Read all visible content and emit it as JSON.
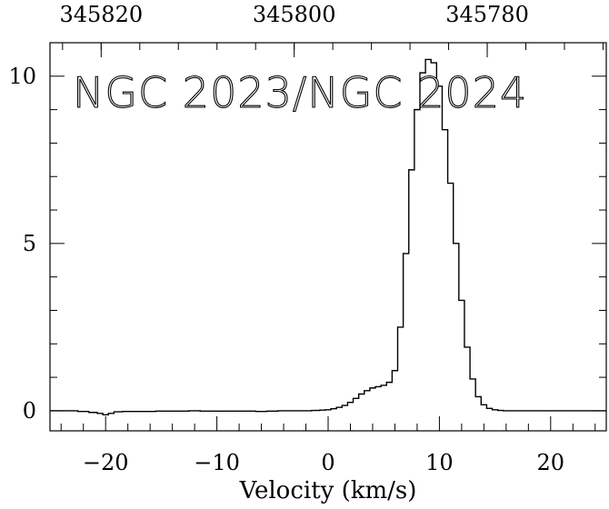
{
  "chart_data": {
    "type": "line",
    "style": "step",
    "title": "NGC 2023/NGC 2024",
    "xlabel": "Velocity (km/s)",
    "ylabel": "",
    "xlim": [
      -25,
      25
    ],
    "ylim": [
      -0.6,
      11
    ],
    "x_ticks": [
      -20,
      -10,
      0,
      10,
      20
    ],
    "x_tick_labels": [
      "−20",
      "−10",
      "0",
      "10",
      "20"
    ],
    "y_ticks": [
      0,
      5,
      10
    ],
    "y_tick_labels": [
      "0",
      "5",
      "10"
    ],
    "top_axis": {
      "ticks_velocity": [
        -20.4,
        -3.05,
        14.3
      ],
      "tick_labels": [
        "345820",
        "345800",
        "345780"
      ]
    },
    "grid": false,
    "series": [
      {
        "x": [
          -25.0,
          -24.0,
          -23.0,
          -22.0,
          -21.0,
          -20.5,
          -20.0,
          -19.5,
          -19.0,
          -18.0,
          -17.0,
          -16.0,
          -15.0,
          -14.0,
          -13.0,
          -12.0,
          -11.0,
          -10.0,
          -9.0,
          -8.0,
          -7.0,
          -6.0,
          -5.0,
          -4.0,
          -3.0,
          -2.0,
          -1.0,
          -0.5,
          0.0,
          0.5,
          1.0,
          1.5,
          2.0,
          2.5,
          3.0,
          3.5,
          4.0,
          4.5,
          5.0,
          5.5,
          6.0,
          6.5,
          7.0,
          7.5,
          8.0,
          8.5,
          9.0,
          9.5,
          10.0,
          10.5,
          11.0,
          11.5,
          12.0,
          12.5,
          13.0,
          13.5,
          14.0,
          14.5,
          15.0,
          15.5,
          16.0,
          16.5,
          17.0,
          18.0,
          19.0,
          20.0,
          21.0,
          22.0,
          23.0,
          24.0,
          25.0
        ],
        "y": [
          0.0,
          0.0,
          0.0,
          -0.02,
          -0.05,
          -0.08,
          -0.12,
          -0.08,
          -0.03,
          -0.02,
          -0.02,
          -0.02,
          -0.01,
          -0.01,
          -0.01,
          0.0,
          -0.01,
          -0.01,
          -0.01,
          -0.01,
          -0.01,
          -0.02,
          -0.01,
          0.0,
          0.0,
          0.0,
          0.01,
          0.02,
          0.03,
          0.06,
          0.1,
          0.16,
          0.25,
          0.37,
          0.5,
          0.6,
          0.68,
          0.72,
          0.76,
          0.85,
          1.2,
          2.5,
          4.7,
          7.2,
          9.0,
          10.1,
          10.5,
          10.4,
          9.7,
          8.4,
          6.8,
          5.0,
          3.3,
          1.9,
          0.95,
          0.42,
          0.18,
          0.07,
          0.03,
          0.01,
          0.0,
          0.0,
          0.0,
          0.0,
          0.0,
          0.0,
          0.0,
          0.0,
          0.0,
          0.0,
          0.0
        ]
      }
    ]
  }
}
